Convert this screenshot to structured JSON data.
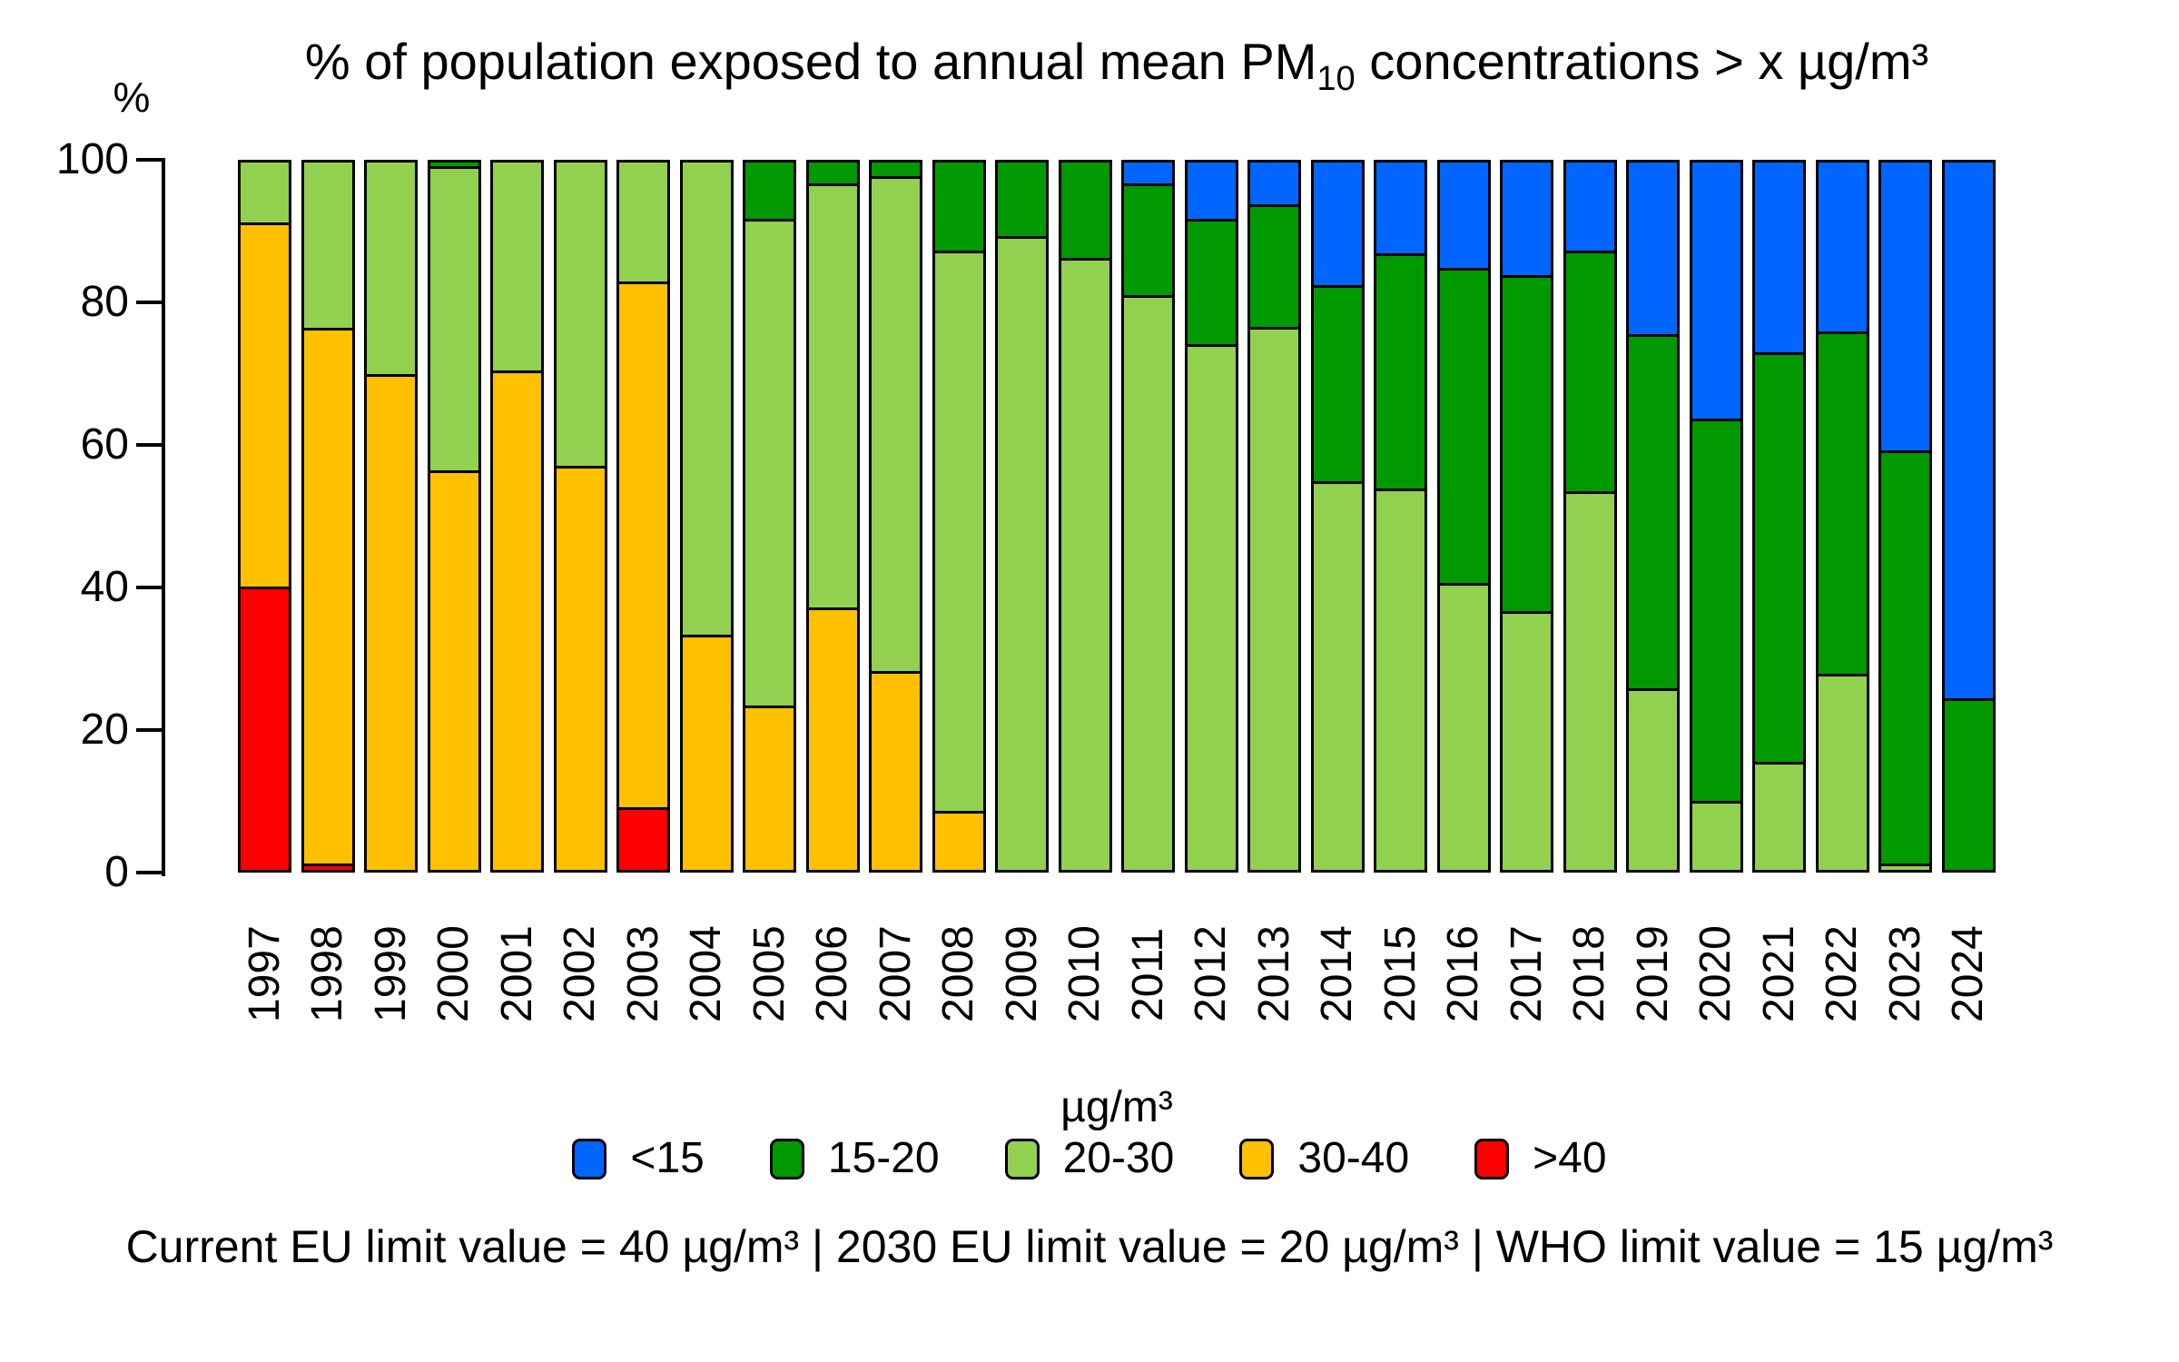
{
  "chart_data": {
    "type": "bar",
    "stacked": true,
    "orientation": "vertical",
    "title": {
      "prefix": "% of population exposed to annual mean PM",
      "sub": "10",
      "suffix": " concentrations > x µg/m³"
    },
    "ylabel": "%",
    "ylim": [
      0,
      100
    ],
    "y_ticks": [
      0,
      20,
      40,
      60,
      80,
      100
    ],
    "grid": false,
    "categories": [
      "1997",
      "1998",
      "1999",
      "2000",
      "2001",
      "2002",
      "2003",
      "2004",
      "2005",
      "2006",
      "2007",
      "2008",
      "2009",
      "2010",
      "2011",
      "2012",
      "2013",
      "2014",
      "2015",
      "2016",
      "2017",
      "2018",
      "2019",
      "2020",
      "2021",
      "2022",
      "2023",
      "2024"
    ],
    "series": [
      {
        "name": ">40",
        "color": "#FF0000",
        "values": [
          40,
          0.5,
          0,
          0,
          0,
          0,
          8.5,
          0,
          0,
          0,
          0,
          0,
          0,
          0,
          0,
          0,
          0,
          0,
          0,
          0,
          0,
          0,
          0,
          0,
          0,
          0,
          0,
          0
        ]
      },
      {
        "name": "30-40",
        "color": "#FFC000",
        "values": [
          51.5,
          76,
          70,
          56.5,
          70.5,
          57,
          74.5,
          33,
          23,
          37,
          28,
          8,
          0,
          0,
          0,
          0,
          0,
          0,
          0,
          0,
          0,
          0,
          0,
          0,
          0,
          0,
          0,
          0
        ]
      },
      {
        "name": "20-30",
        "color": "#92D050",
        "values": [
          8.5,
          23.5,
          30,
          43,
          29.5,
          43,
          17,
          67,
          69,
          60,
          70,
          79.5,
          89.5,
          86.5,
          81.5,
          74.5,
          77,
          55,
          54,
          40.5,
          36.5,
          53.5,
          25.5,
          9.5,
          15,
          27.5,
          0.5,
          0
        ]
      },
      {
        "name": "15-20",
        "color": "#009900",
        "values": [
          0,
          0,
          0,
          0.5,
          0,
          0,
          0,
          0,
          8,
          3,
          2,
          12.5,
          10.5,
          13.5,
          15.5,
          17.5,
          17,
          27.5,
          33,
          44.5,
          47.5,
          34,
          50,
          54,
          58,
          48.5,
          58.5,
          24
        ]
      },
      {
        "name": "<15",
        "color": "#0066FF",
        "values": [
          0,
          0,
          0,
          0,
          0,
          0,
          0,
          0,
          0,
          0,
          0,
          0,
          0,
          0,
          3,
          8,
          6,
          17.5,
          13,
          15,
          16,
          12.5,
          24.5,
          36.5,
          27,
          24,
          41,
          76
        ]
      }
    ],
    "legend": {
      "title": "µg/m³",
      "position": "bottom",
      "items": [
        {
          "label": "<15",
          "color": "#0066FF"
        },
        {
          "label": "15-20",
          "color": "#009900"
        },
        {
          "label": "20-30",
          "color": "#92D050"
        },
        {
          "label": "30-40",
          "color": "#FFC000"
        },
        {
          "label": ">40",
          "color": "#FF0000"
        }
      ]
    },
    "footnote": "Current EU limit value = 40 µg/m³ | 2030 EU limit value = 20 µg/m³ | WHO limit value = 15 µg/m³"
  }
}
